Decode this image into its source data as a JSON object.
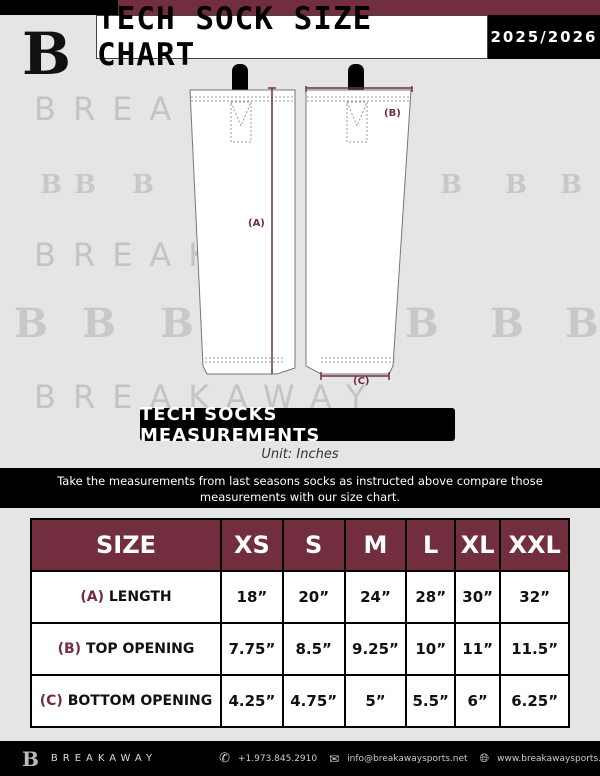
{
  "header": {
    "title": "TECH SOCK SIZE CHART",
    "season": "2025/2026",
    "logo_letter": "B"
  },
  "watermark": {
    "text": "BREAKAWAY",
    "logo": "B"
  },
  "diagram": {
    "length_label": "(A)",
    "top_label": "(B)",
    "bottom_label": "(C)"
  },
  "banner": "TECH SOCKS MEASUREMENTS",
  "unit": "Unit: Inches",
  "instructions": "Take the measurements from last seasons socks as instructed above compare those measurements  with our size chart.",
  "table": {
    "headers": [
      "SIZE",
      "XS",
      "S",
      "M",
      "L",
      "XL",
      "XXL"
    ],
    "rows": [
      {
        "code": "(A)",
        "label": "LENGTH",
        "values": [
          "18”",
          "20”",
          "24”",
          "28”",
          "30”",
          "32”"
        ]
      },
      {
        "code": "(B)",
        "label": "TOP OPENING",
        "values": [
          "7.75”",
          "8.5”",
          "9.25”",
          "10”",
          "11”",
          "11.5”"
        ]
      },
      {
        "code": "(C)",
        "label": "BOTTOM OPENING",
        "values": [
          "4.25”",
          "4.75”",
          "5”",
          "5.5”",
          "6”",
          "6.25”"
        ]
      }
    ]
  },
  "footer": {
    "brand": "BREAKAWAY",
    "phone": "+1.973.845.2910",
    "email": "info@breakawaysports.net",
    "website": "www.breakawaysports.net"
  },
  "colors": {
    "accent": "#722e3f"
  }
}
